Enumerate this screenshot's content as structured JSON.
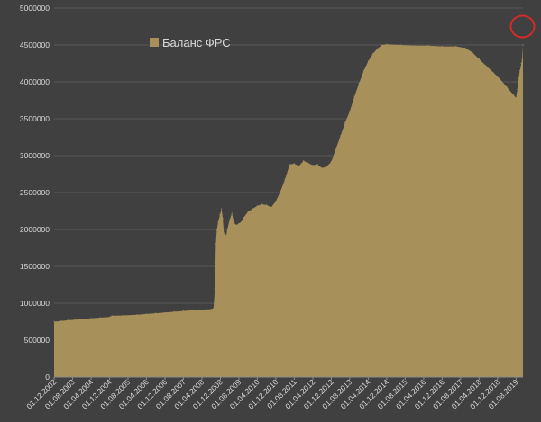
{
  "chart_data": {
    "type": "area",
    "legend": {
      "label": "Баланс ФРС",
      "position": "top-left"
    },
    "color": "#a8905a",
    "background": "#404040",
    "grid": true,
    "ylim": [
      0,
      5000000
    ],
    "y_ticks": [
      "0",
      "500000",
      "1000000",
      "1500000",
      "2000000",
      "2500000",
      "3000000",
      "3500000",
      "4000000",
      "4500000",
      "5000000"
    ],
    "x_range": [
      "2002-12-01",
      "2019-10-31"
    ],
    "x_ticks": [
      "01.12.2002",
      "01.08.2003",
      "01.04.2004",
      "01.12.2004",
      "01.08.2005",
      "01.04.2006",
      "01.12.2006",
      "01.08.2007",
      "01.04.2008",
      "01.12.2008",
      "01.08.2009",
      "01.04.2010",
      "01.12.2010",
      "01.08.2011",
      "01.04.2012",
      "01.12.2012",
      "01.08.2013",
      "01.04.2014",
      "01.12.2014",
      "01.08.2015",
      "01.04.2016",
      "01.12.2016",
      "01.08.2017",
      "01.04.2018",
      "01.12.2018",
      "01.08.2019"
    ],
    "annotation": {
      "type": "circle",
      "color": "#d42a2a",
      "at_date": "2019-10-25",
      "at_value": 4750000
    },
    "points": [
      [
        "2002-12-01",
        750000
      ],
      [
        "2003-03-01",
        760000
      ],
      [
        "2003-06-01",
        770000
      ],
      [
        "2003-09-01",
        775000
      ],
      [
        "2003-12-01",
        785000
      ],
      [
        "2004-04-01",
        795000
      ],
      [
        "2004-08-01",
        805000
      ],
      [
        "2004-12-01",
        815000
      ],
      [
        "2005-01-01",
        830000
      ],
      [
        "2005-06-01",
        835000
      ],
      [
        "2005-12-01",
        845000
      ],
      [
        "2006-04-01",
        855000
      ],
      [
        "2006-08-01",
        865000
      ],
      [
        "2006-12-01",
        875000
      ],
      [
        "2007-04-01",
        885000
      ],
      [
        "2007-08-01",
        895000
      ],
      [
        "2007-12-01",
        905000
      ],
      [
        "2008-03-01",
        910000
      ],
      [
        "2008-06-01",
        915000
      ],
      [
        "2008-08-01",
        920000
      ],
      [
        "2008-09-01",
        930000
      ],
      [
        "2008-09-20",
        1200000
      ],
      [
        "2008-10-01",
        1800000
      ],
      [
        "2008-10-15",
        2000000
      ],
      [
        "2008-11-01",
        2100000
      ],
      [
        "2008-11-25",
        2200000
      ],
      [
        "2008-12-15",
        2280000
      ],
      [
        "2009-01-01",
        2150000
      ],
      [
        "2009-01-15",
        1950000
      ],
      [
        "2009-02-15",
        1920000
      ],
      [
        "2009-03-01",
        2000000
      ],
      [
        "2009-04-01",
        2130000
      ],
      [
        "2009-05-01",
        2220000
      ],
      [
        "2009-06-01",
        2080000
      ],
      [
        "2009-07-01",
        2060000
      ],
      [
        "2009-08-01",
        2080000
      ],
      [
        "2009-09-01",
        2100000
      ],
      [
        "2009-10-01",
        2160000
      ],
      [
        "2009-12-01",
        2240000
      ],
      [
        "2010-02-01",
        2280000
      ],
      [
        "2010-04-01",
        2320000
      ],
      [
        "2010-06-01",
        2340000
      ],
      [
        "2010-08-01",
        2330000
      ],
      [
        "2010-10-01",
        2300000
      ],
      [
        "2010-12-01",
        2380000
      ],
      [
        "2011-02-01",
        2520000
      ],
      [
        "2011-04-01",
        2680000
      ],
      [
        "2011-06-01",
        2880000
      ],
      [
        "2011-08-01",
        2890000
      ],
      [
        "2011-10-01",
        2860000
      ],
      [
        "2011-12-01",
        2930000
      ],
      [
        "2012-02-01",
        2900000
      ],
      [
        "2012-04-01",
        2870000
      ],
      [
        "2012-06-01",
        2880000
      ],
      [
        "2012-08-01",
        2830000
      ],
      [
        "2012-10-01",
        2850000
      ],
      [
        "2012-12-01",
        2920000
      ],
      [
        "2013-02-01",
        3100000
      ],
      [
        "2013-04-01",
        3270000
      ],
      [
        "2013-06-01",
        3450000
      ],
      [
        "2013-08-01",
        3600000
      ],
      [
        "2013-10-01",
        3800000
      ],
      [
        "2013-12-01",
        3980000
      ],
      [
        "2014-02-01",
        4150000
      ],
      [
        "2014-04-01",
        4280000
      ],
      [
        "2014-06-01",
        4380000
      ],
      [
        "2014-08-01",
        4450000
      ],
      [
        "2014-10-01",
        4500000
      ],
      [
        "2014-12-01",
        4510000
      ],
      [
        "2015-06-01",
        4500000
      ],
      [
        "2015-12-01",
        4490000
      ],
      [
        "2016-06-01",
        4490000
      ],
      [
        "2016-12-01",
        4480000
      ],
      [
        "2017-06-01",
        4480000
      ],
      [
        "2017-10-01",
        4460000
      ],
      [
        "2018-01-01",
        4400000
      ],
      [
        "2018-04-01",
        4310000
      ],
      [
        "2018-07-01",
        4220000
      ],
      [
        "2018-10-01",
        4130000
      ],
      [
        "2019-01-01",
        4040000
      ],
      [
        "2019-04-01",
        3930000
      ],
      [
        "2019-07-01",
        3820000
      ],
      [
        "2019-08-01",
        3780000
      ],
      [
        "2019-08-20",
        3900000
      ],
      [
        "2019-09-05",
        4050000
      ],
      [
        "2019-09-20",
        4150000
      ],
      [
        "2019-10-01",
        4200000
      ],
      [
        "2019-10-10",
        4250000
      ],
      [
        "2019-10-20",
        4300000
      ],
      [
        "2019-10-31",
        4500000
      ]
    ]
  }
}
